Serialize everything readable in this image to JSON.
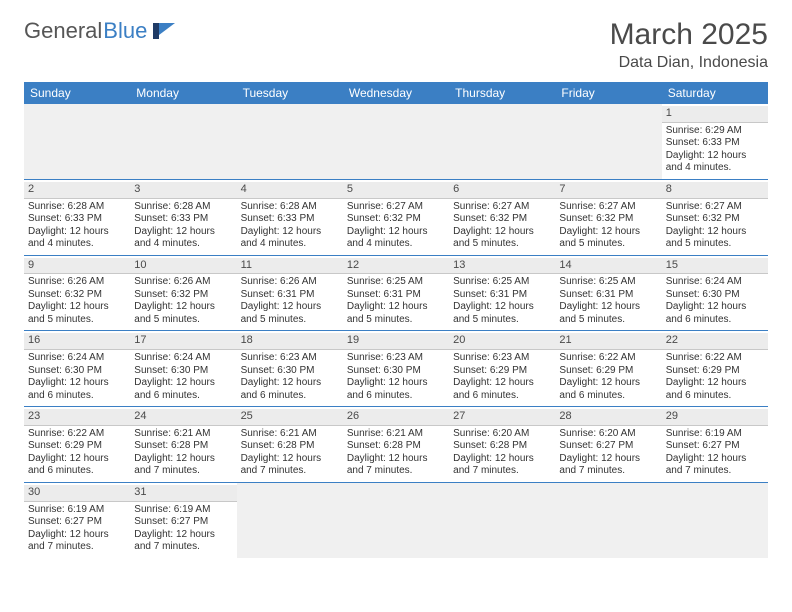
{
  "logo": {
    "part1": "General",
    "part2": "Blue"
  },
  "title": "March 2025",
  "subtitle": "Data Dian, Indonesia",
  "colors": {
    "headerBar": "#3b7fc4",
    "dayNumBg": "#ececec",
    "emptyBg": "#f0f0f0",
    "rowBorder": "#3b7fc4",
    "text": "#333333"
  },
  "dayNames": [
    "Sunday",
    "Monday",
    "Tuesday",
    "Wednesday",
    "Thursday",
    "Friday",
    "Saturday"
  ],
  "weeks": [
    [
      null,
      null,
      null,
      null,
      null,
      null,
      {
        "n": "1",
        "sr": "Sunrise: 6:29 AM",
        "ss": "Sunset: 6:33 PM",
        "d1": "Daylight: 12 hours",
        "d2": "and 4 minutes."
      }
    ],
    [
      {
        "n": "2",
        "sr": "Sunrise: 6:28 AM",
        "ss": "Sunset: 6:33 PM",
        "d1": "Daylight: 12 hours",
        "d2": "and 4 minutes."
      },
      {
        "n": "3",
        "sr": "Sunrise: 6:28 AM",
        "ss": "Sunset: 6:33 PM",
        "d1": "Daylight: 12 hours",
        "d2": "and 4 minutes."
      },
      {
        "n": "4",
        "sr": "Sunrise: 6:28 AM",
        "ss": "Sunset: 6:33 PM",
        "d1": "Daylight: 12 hours",
        "d2": "and 4 minutes."
      },
      {
        "n": "5",
        "sr": "Sunrise: 6:27 AM",
        "ss": "Sunset: 6:32 PM",
        "d1": "Daylight: 12 hours",
        "d2": "and 4 minutes."
      },
      {
        "n": "6",
        "sr": "Sunrise: 6:27 AM",
        "ss": "Sunset: 6:32 PM",
        "d1": "Daylight: 12 hours",
        "d2": "and 5 minutes."
      },
      {
        "n": "7",
        "sr": "Sunrise: 6:27 AM",
        "ss": "Sunset: 6:32 PM",
        "d1": "Daylight: 12 hours",
        "d2": "and 5 minutes."
      },
      {
        "n": "8",
        "sr": "Sunrise: 6:27 AM",
        "ss": "Sunset: 6:32 PM",
        "d1": "Daylight: 12 hours",
        "d2": "and 5 minutes."
      }
    ],
    [
      {
        "n": "9",
        "sr": "Sunrise: 6:26 AM",
        "ss": "Sunset: 6:32 PM",
        "d1": "Daylight: 12 hours",
        "d2": "and 5 minutes."
      },
      {
        "n": "10",
        "sr": "Sunrise: 6:26 AM",
        "ss": "Sunset: 6:32 PM",
        "d1": "Daylight: 12 hours",
        "d2": "and 5 minutes."
      },
      {
        "n": "11",
        "sr": "Sunrise: 6:26 AM",
        "ss": "Sunset: 6:31 PM",
        "d1": "Daylight: 12 hours",
        "d2": "and 5 minutes."
      },
      {
        "n": "12",
        "sr": "Sunrise: 6:25 AM",
        "ss": "Sunset: 6:31 PM",
        "d1": "Daylight: 12 hours",
        "d2": "and 5 minutes."
      },
      {
        "n": "13",
        "sr": "Sunrise: 6:25 AM",
        "ss": "Sunset: 6:31 PM",
        "d1": "Daylight: 12 hours",
        "d2": "and 5 minutes."
      },
      {
        "n": "14",
        "sr": "Sunrise: 6:25 AM",
        "ss": "Sunset: 6:31 PM",
        "d1": "Daylight: 12 hours",
        "d2": "and 5 minutes."
      },
      {
        "n": "15",
        "sr": "Sunrise: 6:24 AM",
        "ss": "Sunset: 6:30 PM",
        "d1": "Daylight: 12 hours",
        "d2": "and 6 minutes."
      }
    ],
    [
      {
        "n": "16",
        "sr": "Sunrise: 6:24 AM",
        "ss": "Sunset: 6:30 PM",
        "d1": "Daylight: 12 hours",
        "d2": "and 6 minutes."
      },
      {
        "n": "17",
        "sr": "Sunrise: 6:24 AM",
        "ss": "Sunset: 6:30 PM",
        "d1": "Daylight: 12 hours",
        "d2": "and 6 minutes."
      },
      {
        "n": "18",
        "sr": "Sunrise: 6:23 AM",
        "ss": "Sunset: 6:30 PM",
        "d1": "Daylight: 12 hours",
        "d2": "and 6 minutes."
      },
      {
        "n": "19",
        "sr": "Sunrise: 6:23 AM",
        "ss": "Sunset: 6:30 PM",
        "d1": "Daylight: 12 hours",
        "d2": "and 6 minutes."
      },
      {
        "n": "20",
        "sr": "Sunrise: 6:23 AM",
        "ss": "Sunset: 6:29 PM",
        "d1": "Daylight: 12 hours",
        "d2": "and 6 minutes."
      },
      {
        "n": "21",
        "sr": "Sunrise: 6:22 AM",
        "ss": "Sunset: 6:29 PM",
        "d1": "Daylight: 12 hours",
        "d2": "and 6 minutes."
      },
      {
        "n": "22",
        "sr": "Sunrise: 6:22 AM",
        "ss": "Sunset: 6:29 PM",
        "d1": "Daylight: 12 hours",
        "d2": "and 6 minutes."
      }
    ],
    [
      {
        "n": "23",
        "sr": "Sunrise: 6:22 AM",
        "ss": "Sunset: 6:29 PM",
        "d1": "Daylight: 12 hours",
        "d2": "and 6 minutes."
      },
      {
        "n": "24",
        "sr": "Sunrise: 6:21 AM",
        "ss": "Sunset: 6:28 PM",
        "d1": "Daylight: 12 hours",
        "d2": "and 7 minutes."
      },
      {
        "n": "25",
        "sr": "Sunrise: 6:21 AM",
        "ss": "Sunset: 6:28 PM",
        "d1": "Daylight: 12 hours",
        "d2": "and 7 minutes."
      },
      {
        "n": "26",
        "sr": "Sunrise: 6:21 AM",
        "ss": "Sunset: 6:28 PM",
        "d1": "Daylight: 12 hours",
        "d2": "and 7 minutes."
      },
      {
        "n": "27",
        "sr": "Sunrise: 6:20 AM",
        "ss": "Sunset: 6:28 PM",
        "d1": "Daylight: 12 hours",
        "d2": "and 7 minutes."
      },
      {
        "n": "28",
        "sr": "Sunrise: 6:20 AM",
        "ss": "Sunset: 6:27 PM",
        "d1": "Daylight: 12 hours",
        "d2": "and 7 minutes."
      },
      {
        "n": "29",
        "sr": "Sunrise: 6:19 AM",
        "ss": "Sunset: 6:27 PM",
        "d1": "Daylight: 12 hours",
        "d2": "and 7 minutes."
      }
    ],
    [
      {
        "n": "30",
        "sr": "Sunrise: 6:19 AM",
        "ss": "Sunset: 6:27 PM",
        "d1": "Daylight: 12 hours",
        "d2": "and 7 minutes."
      },
      {
        "n": "31",
        "sr": "Sunrise: 6:19 AM",
        "ss": "Sunset: 6:27 PM",
        "d1": "Daylight: 12 hours",
        "d2": "and 7 minutes."
      },
      null,
      null,
      null,
      null,
      null
    ]
  ]
}
